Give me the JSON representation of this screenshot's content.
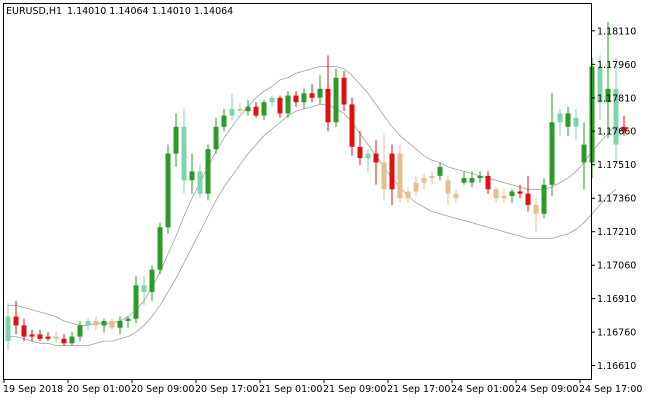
{
  "header": {
    "symbol": "EURUSD,H1",
    "ohlc": "1.14010 1.14064 1.14010 1.14064"
  },
  "colors": {
    "background": "#ffffff",
    "frame": "#000000",
    "text": "#000000",
    "envelope": "#a0a0a0",
    "bull_strong": "#2a9a2a",
    "bull_light": "#7fd4b0",
    "bear_strong": "#e01010",
    "bear_light": "#e3c08f"
  },
  "chart_data": {
    "type": "candlestick",
    "title": "EURUSD,H1",
    "ylim": [
      1.1655,
      1.1823
    ],
    "y_ticks": [
      "1.18110",
      "1.17960",
      "1.17810",
      "1.17660",
      "1.17510",
      "1.17360",
      "1.17210",
      "1.17060",
      "1.16910",
      "1.16760",
      "1.16610"
    ],
    "x_ticks": [
      {
        "label": "19 Sep 2018",
        "index": 0
      },
      {
        "label": "20 Sep 01:00",
        "index": 8
      },
      {
        "label": "20 Sep 09:00",
        "index": 16
      },
      {
        "label": "20 Sep 17:00",
        "index": 24
      },
      {
        "label": "21 Sep 01:00",
        "index": 32
      },
      {
        "label": "21 Sep 09:00",
        "index": 40
      },
      {
        "label": "21 Sep 17:00",
        "index": 48
      },
      {
        "label": "24 Sep 01:00",
        "index": 56
      },
      {
        "label": "24 Sep 09:00",
        "index": 64
      },
      {
        "label": "24 Sep 17:00",
        "index": 72
      }
    ],
    "candles": [
      {
        "o": 1.1672,
        "h": 1.1689,
        "l": 1.1668,
        "c": 1.1683,
        "color": "bull_light"
      },
      {
        "o": 1.1683,
        "h": 1.169,
        "l": 1.1675,
        "c": 1.1679,
        "color": "bear_strong"
      },
      {
        "o": 1.1679,
        "h": 1.1682,
        "l": 1.1672,
        "c": 1.1674,
        "color": "bear_strong"
      },
      {
        "o": 1.1674,
        "h": 1.1677,
        "l": 1.1672,
        "c": 1.1675,
        "color": "bear_strong"
      },
      {
        "o": 1.1675,
        "h": 1.1677,
        "l": 1.1672,
        "c": 1.1673,
        "color": "bear_strong"
      },
      {
        "o": 1.1673,
        "h": 1.1676,
        "l": 1.1672,
        "c": 1.1674,
        "color": "bear_strong"
      },
      {
        "o": 1.1674,
        "h": 1.1676,
        "l": 1.1671,
        "c": 1.1673,
        "color": "bear_light"
      },
      {
        "o": 1.1673,
        "h": 1.1675,
        "l": 1.167,
        "c": 1.1671,
        "color": "bear_strong"
      },
      {
        "o": 1.1671,
        "h": 1.1676,
        "l": 1.167,
        "c": 1.1674,
        "color": "bull_strong"
      },
      {
        "o": 1.1674,
        "h": 1.1681,
        "l": 1.1672,
        "c": 1.1679,
        "color": "bull_strong"
      },
      {
        "o": 1.1679,
        "h": 1.1682,
        "l": 1.1677,
        "c": 1.1681,
        "color": "bull_light"
      },
      {
        "o": 1.1681,
        "h": 1.1683,
        "l": 1.1677,
        "c": 1.1679,
        "color": "bear_light"
      },
      {
        "o": 1.1679,
        "h": 1.1682,
        "l": 1.1676,
        "c": 1.1681,
        "color": "bull_strong"
      },
      {
        "o": 1.1681,
        "h": 1.1682,
        "l": 1.1677,
        "c": 1.1678,
        "color": "bear_light"
      },
      {
        "o": 1.1678,
        "h": 1.1683,
        "l": 1.1675,
        "c": 1.1681,
        "color": "bull_strong"
      },
      {
        "o": 1.1681,
        "h": 1.1683,
        "l": 1.1678,
        "c": 1.1682,
        "color": "bull_strong"
      },
      {
        "o": 1.1682,
        "h": 1.1701,
        "l": 1.168,
        "c": 1.1697,
        "color": "bull_strong"
      },
      {
        "o": 1.1697,
        "h": 1.1701,
        "l": 1.1688,
        "c": 1.1694,
        "color": "bull_light"
      },
      {
        "o": 1.1694,
        "h": 1.1706,
        "l": 1.169,
        "c": 1.1704,
        "color": "bull_strong"
      },
      {
        "o": 1.1704,
        "h": 1.1725,
        "l": 1.1702,
        "c": 1.1723,
        "color": "bull_strong"
      },
      {
        "o": 1.1723,
        "h": 1.176,
        "l": 1.172,
        "c": 1.1756,
        "color": "bull_strong"
      },
      {
        "o": 1.1756,
        "h": 1.1774,
        "l": 1.175,
        "c": 1.1768,
        "color": "bull_strong"
      },
      {
        "o": 1.1768,
        "h": 1.1776,
        "l": 1.1738,
        "c": 1.1744,
        "color": "bull_light"
      },
      {
        "o": 1.1744,
        "h": 1.1756,
        "l": 1.1738,
        "c": 1.1748,
        "color": "bull_strong"
      },
      {
        "o": 1.1748,
        "h": 1.1751,
        "l": 1.1736,
        "c": 1.1738,
        "color": "bull_light"
      },
      {
        "o": 1.1738,
        "h": 1.176,
        "l": 1.1735,
        "c": 1.1758,
        "color": "bull_strong"
      },
      {
        "o": 1.1758,
        "h": 1.1772,
        "l": 1.1756,
        "c": 1.1768,
        "color": "bull_strong"
      },
      {
        "o": 1.1768,
        "h": 1.1776,
        "l": 1.1766,
        "c": 1.1773,
        "color": "bull_strong"
      },
      {
        "o": 1.1773,
        "h": 1.1783,
        "l": 1.1771,
        "c": 1.1776,
        "color": "bull_light"
      },
      {
        "o": 1.1776,
        "h": 1.1779,
        "l": 1.1774,
        "c": 1.1775,
        "color": "bear_light"
      },
      {
        "o": 1.1775,
        "h": 1.178,
        "l": 1.1773,
        "c": 1.1777,
        "color": "bull_strong"
      },
      {
        "o": 1.1777,
        "h": 1.1779,
        "l": 1.1772,
        "c": 1.1773,
        "color": "bear_strong"
      },
      {
        "o": 1.1773,
        "h": 1.178,
        "l": 1.1771,
        "c": 1.1779,
        "color": "bull_strong"
      },
      {
        "o": 1.1779,
        "h": 1.1782,
        "l": 1.1777,
        "c": 1.1781,
        "color": "bull_light"
      },
      {
        "o": 1.1781,
        "h": 1.1782,
        "l": 1.1772,
        "c": 1.1774,
        "color": "bear_strong"
      },
      {
        "o": 1.1774,
        "h": 1.1784,
        "l": 1.1772,
        "c": 1.1782,
        "color": "bull_strong"
      },
      {
        "o": 1.1782,
        "h": 1.1784,
        "l": 1.1777,
        "c": 1.1779,
        "color": "bear_strong"
      },
      {
        "o": 1.1779,
        "h": 1.1785,
        "l": 1.1776,
        "c": 1.1783,
        "color": "bull_strong"
      },
      {
        "o": 1.1783,
        "h": 1.1787,
        "l": 1.1779,
        "c": 1.1781,
        "color": "bear_strong"
      },
      {
        "o": 1.1781,
        "h": 1.1791,
        "l": 1.1778,
        "c": 1.1785,
        "color": "bull_strong"
      },
      {
        "o": 1.1785,
        "h": 1.18,
        "l": 1.1766,
        "c": 1.177,
        "color": "bear_strong"
      },
      {
        "o": 1.177,
        "h": 1.1794,
        "l": 1.1768,
        "c": 1.179,
        "color": "bull_strong"
      },
      {
        "o": 1.179,
        "h": 1.1793,
        "l": 1.1775,
        "c": 1.1778,
        "color": "bear_strong"
      },
      {
        "o": 1.1778,
        "h": 1.1781,
        "l": 1.1755,
        "c": 1.1759,
        "color": "bear_strong"
      },
      {
        "o": 1.1759,
        "h": 1.1766,
        "l": 1.1751,
        "c": 1.1754,
        "color": "bear_strong"
      },
      {
        "o": 1.1754,
        "h": 1.1758,
        "l": 1.1748,
        "c": 1.1756,
        "color": "bull_light"
      },
      {
        "o": 1.1756,
        "h": 1.1762,
        "l": 1.1742,
        "c": 1.1752,
        "color": "bear_strong"
      },
      {
        "o": 1.1752,
        "h": 1.1765,
        "l": 1.1735,
        "c": 1.174,
        "color": "bear_light"
      },
      {
        "o": 1.174,
        "h": 1.176,
        "l": 1.1733,
        "c": 1.1756,
        "color": "bear_strong"
      },
      {
        "o": 1.1756,
        "h": 1.176,
        "l": 1.1734,
        "c": 1.1736,
        "color": "bear_light"
      },
      {
        "o": 1.1736,
        "h": 1.1741,
        "l": 1.1734,
        "c": 1.1739,
        "color": "bear_light"
      },
      {
        "o": 1.1739,
        "h": 1.1746,
        "l": 1.1737,
        "c": 1.1743,
        "color": "bear_light"
      },
      {
        "o": 1.1743,
        "h": 1.1747,
        "l": 1.174,
        "c": 1.1745,
        "color": "bear_light"
      },
      {
        "o": 1.1745,
        "h": 1.1748,
        "l": 1.1742,
        "c": 1.1746,
        "color": "bear_light"
      },
      {
        "o": 1.1746,
        "h": 1.1752,
        "l": 1.1744,
        "c": 1.175,
        "color": "bull_strong"
      },
      {
        "o": 1.1744,
        "h": 1.1746,
        "l": 1.1733,
        "c": 1.1738,
        "color": "bear_light"
      },
      {
        "o": 1.1738,
        "h": 1.174,
        "l": 1.1734,
        "c": 1.1736,
        "color": "bear_light"
      },
      {
        "o": 1.1745,
        "h": 1.1748,
        "l": 1.1742,
        "c": 1.1743,
        "color": "bull_strong"
      },
      {
        "o": 1.1743,
        "h": 1.1748,
        "l": 1.1741,
        "c": 1.1745,
        "color": "bull_strong"
      },
      {
        "o": 1.1745,
        "h": 1.1748,
        "l": 1.1743,
        "c": 1.1746,
        "color": "bull_strong"
      },
      {
        "o": 1.1746,
        "h": 1.1748,
        "l": 1.1738,
        "c": 1.174,
        "color": "bear_strong"
      },
      {
        "o": 1.174,
        "h": 1.1741,
        "l": 1.1734,
        "c": 1.1736,
        "color": "bear_light"
      },
      {
        "o": 1.1736,
        "h": 1.174,
        "l": 1.1734,
        "c": 1.1737,
        "color": "bear_light"
      },
      {
        "o": 1.1737,
        "h": 1.174,
        "l": 1.1734,
        "c": 1.1739,
        "color": "bull_strong"
      },
      {
        "o": 1.1739,
        "h": 1.1742,
        "l": 1.1736,
        "c": 1.1738,
        "color": "bear_strong"
      },
      {
        "o": 1.1738,
        "h": 1.1746,
        "l": 1.173,
        "c": 1.1733,
        "color": "bear_strong"
      },
      {
        "o": 1.1733,
        "h": 1.1736,
        "l": 1.1721,
        "c": 1.1729,
        "color": "bear_light"
      },
      {
        "o": 1.1729,
        "h": 1.1745,
        "l": 1.1727,
        "c": 1.1742,
        "color": "bull_strong"
      },
      {
        "o": 1.1742,
        "h": 1.1783,
        "l": 1.1737,
        "c": 1.177,
        "color": "bull_strong"
      },
      {
        "o": 1.177,
        "h": 1.1776,
        "l": 1.1764,
        "c": 1.1774,
        "color": "bull_light"
      },
      {
        "o": 1.1774,
        "h": 1.1777,
        "l": 1.1764,
        "c": 1.1768,
        "color": "bull_strong"
      },
      {
        "o": 1.1768,
        "h": 1.1776,
        "l": 1.1762,
        "c": 1.1772,
        "color": "bull_light"
      },
      {
        "o": 1.176,
        "h": 1.177,
        "l": 1.174,
        "c": 1.1752,
        "color": "bull_strong"
      },
      {
        "o": 1.1752,
        "h": 1.1799,
        "l": 1.1745,
        "c": 1.1795,
        "color": "bull_strong"
      },
      {
        "o": 1.1795,
        "h": 1.18,
        "l": 1.1771,
        "c": 1.1779,
        "color": "bull_light"
      },
      {
        "o": 1.1779,
        "h": 1.1815,
        "l": 1.1763,
        "c": 1.1785,
        "color": "bull_strong"
      },
      {
        "o": 1.1785,
        "h": 1.1799,
        "l": 1.1752,
        "c": 1.176,
        "color": "bull_light"
      },
      {
        "o": 1.1768,
        "h": 1.1773,
        "l": 1.1764,
        "c": 1.1766,
        "color": "bear_strong"
      }
    ],
    "envelope_upper": [
      1.1688,
      1.1688,
      1.1687,
      1.1686,
      1.1685,
      1.1684,
      1.1683,
      1.1681,
      1.168,
      1.1679,
      1.1679,
      1.168,
      1.168,
      1.168,
      1.1681,
      1.1683,
      1.1686,
      1.169,
      1.1696,
      1.1703,
      1.1711,
      1.1719,
      1.1728,
      1.1736,
      1.1743,
      1.175,
      1.1757,
      1.1763,
      1.1768,
      1.1773,
      1.1777,
      1.1781,
      1.1784,
      1.1786,
      1.1789,
      1.179,
      1.1792,
      1.1793,
      1.1794,
      1.1795,
      1.1795,
      1.1795,
      1.1794,
      1.1791,
      1.1787,
      1.1783,
      1.1778,
      1.1773,
      1.1768,
      1.1764,
      1.1761,
      1.1758,
      1.1755,
      1.1753,
      1.1752,
      1.175,
      1.1749,
      1.1748,
      1.1747,
      1.1746,
      1.1745,
      1.1744,
      1.1743,
      1.1742,
      1.1741,
      1.174,
      1.174,
      1.174,
      1.1741,
      1.1743,
      1.1745,
      1.1748,
      1.1752,
      1.1757,
      1.1761,
      1.1765,
      1.1769
    ],
    "envelope_lower": [
      1.1674,
      1.1674,
      1.1673,
      1.1672,
      1.1671,
      1.1671,
      1.167,
      1.167,
      1.167,
      1.167,
      1.167,
      1.1671,
      1.1672,
      1.1672,
      1.1673,
      1.1674,
      1.1676,
      1.1679,
      1.1683,
      1.1688,
      1.1694,
      1.17,
      1.1707,
      1.1714,
      1.1721,
      1.1728,
      1.1735,
      1.1741,
      1.1746,
      1.1751,
      1.1756,
      1.176,
      1.1764,
      1.1767,
      1.177,
      1.1773,
      1.1775,
      1.1776,
      1.1777,
      1.1778,
      1.1778,
      1.1776,
      1.1774,
      1.177,
      1.1765,
      1.176,
      1.1755,
      1.175,
      1.1745,
      1.1741,
      1.1737,
      1.1734,
      1.1732,
      1.173,
      1.1729,
      1.1728,
      1.1727,
      1.1726,
      1.1725,
      1.1724,
      1.1723,
      1.1722,
      1.1721,
      1.172,
      1.1719,
      1.1718,
      1.1718,
      1.1718,
      1.1718,
      1.1719,
      1.172,
      1.1722,
      1.1725,
      1.1729,
      1.1733,
      1.1737,
      1.174
    ]
  }
}
